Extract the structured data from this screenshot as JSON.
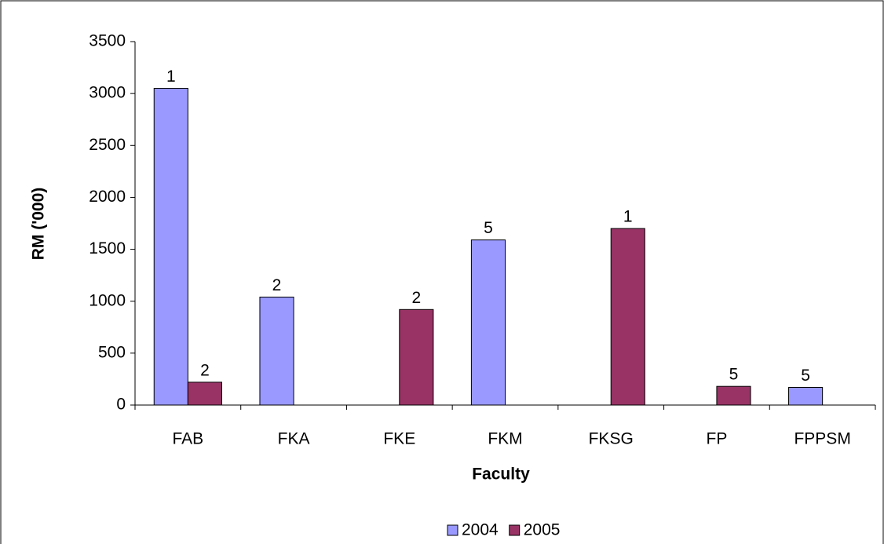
{
  "chart_data": {
    "type": "bar",
    "x_label": "Faculty",
    "y_label": "RM ('000)",
    "categories": [
      "FAB",
      "FKA",
      "FKE",
      "FKM",
      "FKSG",
      "FP",
      "FPPSM"
    ],
    "series": [
      {
        "name": "2004",
        "color": "#9999ff",
        "values": [
          3050,
          1040,
          null,
          1590,
          null,
          null,
          170
        ],
        "bar_labels": [
          "1",
          "2",
          null,
          "5",
          null,
          null,
          "5"
        ]
      },
      {
        "name": "2005",
        "color": "#993366",
        "values": [
          220,
          null,
          920,
          null,
          1700,
          180,
          null
        ],
        "bar_labels": [
          "2",
          null,
          "2",
          null,
          "1",
          "5",
          null
        ]
      }
    ],
    "ylim": [
      0,
      3500
    ],
    "yticks": [
      0,
      500,
      1000,
      1500,
      2000,
      2500,
      3000,
      3500
    ],
    "legend": "bottom"
  }
}
